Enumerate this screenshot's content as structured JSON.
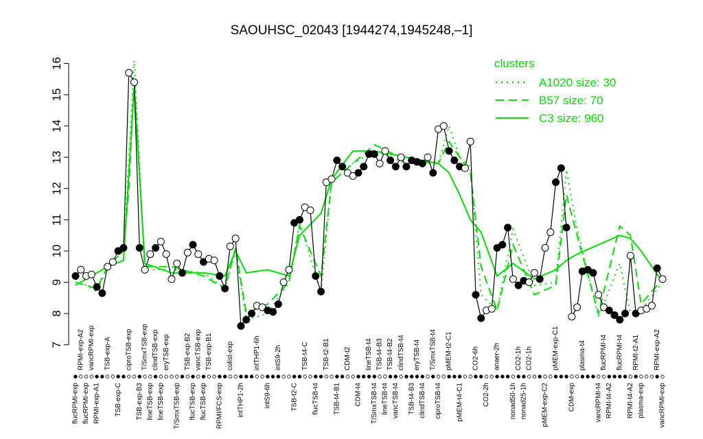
{
  "chart_data": {
    "type": "line",
    "title": "SAOUHSC_02043 [1944274,1945248,–1]",
    "legend_title": "clusters",
    "legend_color": "#00e000",
    "ylim": [
      6.75,
      16.45
    ],
    "yticks": [
      7,
      8,
      9,
      10,
      11,
      12,
      13,
      14,
      15,
      16
    ],
    "color": "#000000",
    "categories": [
      "flucRPMI-exp",
      "RPMI-exp-A2",
      "flucRPMI-exp",
      "vancRPMI-exp",
      "RPMI-exp-A1",
      null,
      "TSB-exp-A",
      null,
      "TSB-exp-C",
      null,
      "ciproTSB-exp",
      null,
      "TSB-exp-B3",
      "T/SmxTSB-exp",
      "lineTSB-exp",
      "clindTSB-exp",
      "lineTSB-exp",
      "eryTSB-exp",
      null,
      "T/SmxTSB-exp",
      null,
      "TSB-exp-B2",
      "flucTSB-exp",
      "vancTSB-exp",
      "flucTSB-exp",
      "TSB-exp-B1",
      null,
      "RPMI/FCS-exp",
      null,
      "colist-exp",
      null,
      "intTHP1-2h",
      null,
      null,
      "intTHP1-6h",
      null,
      "intS9-6h",
      null,
      "intS9-2h",
      null,
      null,
      "TSB-t2-C",
      null,
      "TSB-t4-C",
      null,
      "flucTSB-t4",
      null,
      "TSB-t2-B1",
      null,
      "TSB-t4-B1",
      null,
      "CDM-t2",
      null,
      "CDM-t4",
      null,
      "lineTSB-t4",
      "T/SmxTSB-t4",
      "TSB-t4-B3",
      "lineTSB-t4",
      "TSB-t4-B2",
      "vancTSB-t4",
      "clindTSB-t4",
      null,
      "TSB-t4-B3",
      "eryTSB-t4",
      "clindTSB-t4",
      null,
      "T/SmxTSB-t4",
      "ciproTSB-t4",
      null,
      "pMEM-t2-C1",
      null,
      "pMEM-t4-C1",
      null,
      null,
      "CO2-6h",
      null,
      "CO2-2h",
      null,
      "anaer-2h",
      null,
      null,
      "nonad50-1h",
      "CO2-1h",
      "nonad25-1h",
      "CO2-1h",
      null,
      null,
      "pMEM-exp-C2",
      null,
      "pMEM-exp-C1",
      null,
      null,
      "CDM-exp",
      null,
      "plasma-t4",
      null,
      null,
      "vancRPMI-t4",
      "flucRPMI-t4",
      "RPMI-t4-A2",
      null,
      "flucRPMI-t4",
      null,
      "RPMI-t4-A2",
      "RPMI-t2-A1",
      "plasma-exp",
      null,
      null,
      "RPMI-exp-A2",
      "vancRPMI-exp"
    ],
    "values": [
      9.2,
      9.4,
      9.2,
      9.25,
      8.85,
      8.65,
      9.5,
      9.65,
      10.0,
      10.1,
      15.7,
      15.4,
      10.1,
      9.4,
      9.9,
      10.1,
      10.3,
      9.9,
      9.1,
      9.6,
      9.3,
      9.95,
      10.2,
      9.9,
      9.65,
      9.75,
      9.7,
      9.2,
      8.8,
      10.15,
      10.4,
      7.6,
      7.8,
      8.0,
      8.25,
      8.2,
      8.1,
      8.05,
      8.3,
      9.0,
      9.4,
      10.9,
      11.0,
      11.4,
      11.3,
      9.2,
      8.7,
      12.2,
      12.3,
      12.9,
      12.7,
      12.5,
      12.4,
      12.5,
      12.7,
      13.1,
      13.1,
      12.8,
      13.2,
      12.9,
      12.7,
      13.0,
      12.7,
      12.9,
      12.85,
      12.8,
      13.0,
      12.5,
      13.9,
      14.0,
      13.2,
      12.9,
      12.7,
      12.65,
      13.5,
      8.6,
      7.85,
      8.1,
      8.15,
      10.1,
      10.2,
      10.75,
      9.1,
      8.9,
      9.05,
      9.0,
      9.3,
      9.1,
      10.1,
      10.6,
      12.2,
      12.65,
      10.75,
      7.9,
      8.2,
      9.35,
      9.4,
      9.3,
      8.6,
      8.2,
      8.1,
      7.95,
      7.8,
      8.0,
      9.85,
      8.0,
      8.1,
      8.15,
      8.25,
      9.45,
      9.1
    ],
    "filled": [
      true,
      false,
      false,
      false,
      true,
      true,
      false,
      false,
      true,
      true,
      false,
      false,
      true,
      false,
      false,
      true,
      false,
      false,
      false,
      false,
      true,
      false,
      true,
      false,
      true,
      false,
      false,
      true,
      true,
      false,
      false,
      true,
      true,
      true,
      false,
      false,
      true,
      true,
      true,
      false,
      false,
      true,
      true,
      false,
      false,
      true,
      true,
      false,
      false,
      true,
      true,
      false,
      false,
      true,
      true,
      true,
      true,
      false,
      false,
      true,
      true,
      false,
      true,
      true,
      true,
      true,
      false,
      true,
      false,
      false,
      true,
      true,
      true,
      false,
      false,
      true,
      true,
      false,
      false,
      true,
      true,
      true,
      false,
      true,
      true,
      false,
      false,
      true,
      false,
      false,
      true,
      true,
      true,
      false,
      false,
      true,
      true,
      true,
      false,
      false,
      true,
      true,
      true,
      true,
      false,
      true,
      false,
      false,
      false,
      true,
      false
    ],
    "series": [
      {
        "name": "A1020 size: 30",
        "color": "#00e000",
        "style": "dotted",
        "x": [
          0,
          4,
          6,
          9,
          10,
          11,
          13,
          18,
          24,
          28,
          30,
          32,
          36,
          40,
          42,
          46,
          48,
          52,
          56,
          62,
          68,
          70,
          72,
          74,
          76,
          79,
          82,
          86,
          90,
          92,
          94,
          98,
          102,
          104,
          106,
          110
        ],
        "values": [
          9.1,
          8.7,
          9.5,
          10.0,
          13,
          16.1,
          9.4,
          9.4,
          9.3,
          8.8,
          10.0,
          7.8,
          8.0,
          9.0,
          10.9,
          8.7,
          12.2,
          12.8,
          13.2,
          12.8,
          12.8,
          14.0,
          13.0,
          12.7,
          8.6,
          8.1,
          10.7,
          8.9,
          9.0,
          12.6,
          10.7,
          7.9,
          9.6,
          8.0,
          8.1,
          9.0
        ]
      },
      {
        "name": "B57 size: 70",
        "color": "#00e000",
        "style": "dashed",
        "x": [
          0,
          4,
          6,
          9,
          10,
          11,
          13,
          18,
          24,
          28,
          30,
          32,
          36,
          40,
          42,
          46,
          48,
          52,
          56,
          62,
          68,
          70,
          72,
          74,
          76,
          79,
          82,
          86,
          90,
          92,
          94,
          98,
          102,
          104,
          106,
          110
        ],
        "values": [
          9.0,
          8.8,
          9.5,
          10.0,
          12,
          15.5,
          9.5,
          9.5,
          9.2,
          8.8,
          10.1,
          8.0,
          8.3,
          9.0,
          10.8,
          9.2,
          12.2,
          12.8,
          13.4,
          12.9,
          12.8,
          13.5,
          13.0,
          12.5,
          9.5,
          8.1,
          10.2,
          8.6,
          8.9,
          11.8,
          10.5,
          8.0,
          10.8,
          10.5,
          8.3,
          9.1
        ]
      },
      {
        "name": "C3 size: 960",
        "color": "#00e000",
        "style": "solid",
        "x": [
          0,
          4,
          6,
          9,
          10,
          11,
          13,
          18,
          24,
          28,
          30,
          32,
          36,
          40,
          42,
          46,
          48,
          52,
          56,
          62,
          68,
          70,
          72,
          74,
          76,
          79,
          82,
          86,
          90,
          92,
          94,
          98,
          102,
          104,
          106,
          110
        ],
        "values": [
          8.9,
          9.3,
          9.5,
          9.7,
          12.5,
          15.2,
          9.6,
          9.3,
          9.3,
          9.2,
          10.0,
          9.3,
          9.4,
          9.2,
          10.5,
          11.2,
          12.3,
          13.2,
          13.2,
          13.0,
          12.8,
          12.5,
          11.8,
          11.0,
          10.6,
          9.2,
          9.6,
          9.1,
          9.4,
          9.7,
          9.9,
          10.2,
          10.5,
          10.4,
          10.0,
          9.0
        ]
      }
    ]
  }
}
